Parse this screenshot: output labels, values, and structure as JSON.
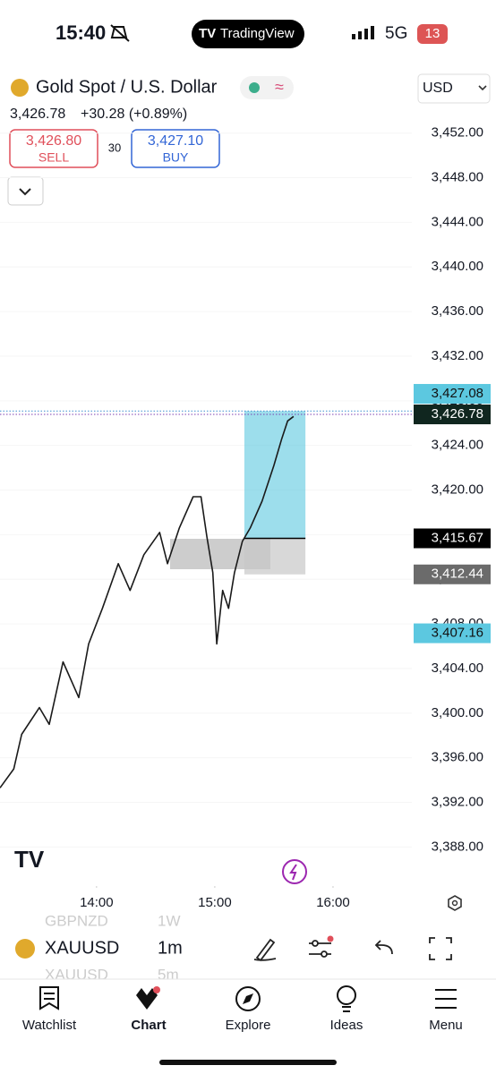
{
  "status_bar": {
    "time": "15:40",
    "app": "TradingView",
    "network": "5G",
    "battery": "13"
  },
  "header": {
    "symbol_name": "Gold Spot / U.S. Dollar",
    "currency": "USD",
    "price": "3,426.78",
    "change": "+30.28 (+0.89%)",
    "sell": {
      "price": "3,426.80",
      "label": "SELL"
    },
    "spread": "30",
    "buy": {
      "price": "3,427.10",
      "label": "BUY"
    }
  },
  "chart_data": {
    "type": "line",
    "color": "#1a1a1a",
    "x": [
      791,
      798,
      802,
      811,
      816,
      823,
      831,
      836,
      843,
      851,
      857,
      864,
      872,
      876,
      882,
      889,
      893,
      896,
      899,
      901,
      904,
      907,
      910,
      914,
      918,
      924,
      930,
      934,
      937,
      940
    ],
    "values": [
      3393.3,
      3395,
      3398.1,
      3400.5,
      3399,
      3404.6,
      3401.4,
      3406.2,
      3409.4,
      3413.4,
      3411,
      3414.2,
      3416.2,
      3413.4,
      3416.6,
      3419.4,
      3419.4,
      3415.8,
      3412.6,
      3406.2,
      3411,
      3409.4,
      3412.6,
      3415.4,
      3416.6,
      3419,
      3422.2,
      3424.6,
      3426.2,
      3426.6
    ],
    "xlim": [
      791,
      1000
    ],
    "xticks": [
      {
        "value": 840,
        "label": "14:00"
      },
      {
        "value": 900,
        "label": "15:00"
      },
      {
        "value": 960,
        "label": "16:00"
      }
    ],
    "ylim": [
      3384.5,
      3453.5
    ],
    "yticks": [
      {
        "value": 3452,
        "label": "3,452.00"
      },
      {
        "value": 3448,
        "label": "3,448.00"
      },
      {
        "value": 3444,
        "label": "3,444.00"
      },
      {
        "value": 3440,
        "label": "3,440.00"
      },
      {
        "value": 3436,
        "label": "3,436.00"
      },
      {
        "value": 3432,
        "label": "3,432.00"
      },
      {
        "value": 3428,
        "label": "3,428.00"
      },
      {
        "value": 3424,
        "label": "3,424.00"
      },
      {
        "value": 3420,
        "label": "3,420.00"
      },
      {
        "value": 3416,
        "label": "3,416.00"
      },
      {
        "value": 3412,
        "label": "3,412.00"
      },
      {
        "value": 3408,
        "label": "3,408.00"
      },
      {
        "value": 3404,
        "label": "3,404.00"
      },
      {
        "value": 3400,
        "label": "3,400.00"
      },
      {
        "value": 3396,
        "label": "3,396.00"
      },
      {
        "value": 3392,
        "label": "3,392.00"
      },
      {
        "value": 3388,
        "label": "3,388.00"
      }
    ],
    "price_labels": [
      {
        "value": 3427.08,
        "label": "3,427.08",
        "color": "#5cc8e0"
      },
      {
        "value": 3426.78,
        "label": "3,426.78",
        "color": "#10261f"
      },
      {
        "value": 3415.67,
        "label": "3,415.67",
        "color": "#000000"
      },
      {
        "value": 3412.44,
        "label": "3,412.44",
        "color": "#6b6b6b"
      },
      {
        "value": 3407.16,
        "label": "3,407.16",
        "color": "#5cc8e0"
      }
    ],
    "position": {
      "start": 915,
      "end": 946,
      "target": 3427.08,
      "entry": 3415.67,
      "stop": 3412.44
    }
  },
  "toolbar": {
    "symbol": "XAUUSD",
    "interval": "1m",
    "ghost_above": [
      "GBPNZD",
      "1W"
    ],
    "ghost_below": [
      "XAUUSD",
      "5m"
    ]
  },
  "nav": [
    "Watchlist",
    "Chart",
    "Explore",
    "Ideas",
    "Menu"
  ]
}
